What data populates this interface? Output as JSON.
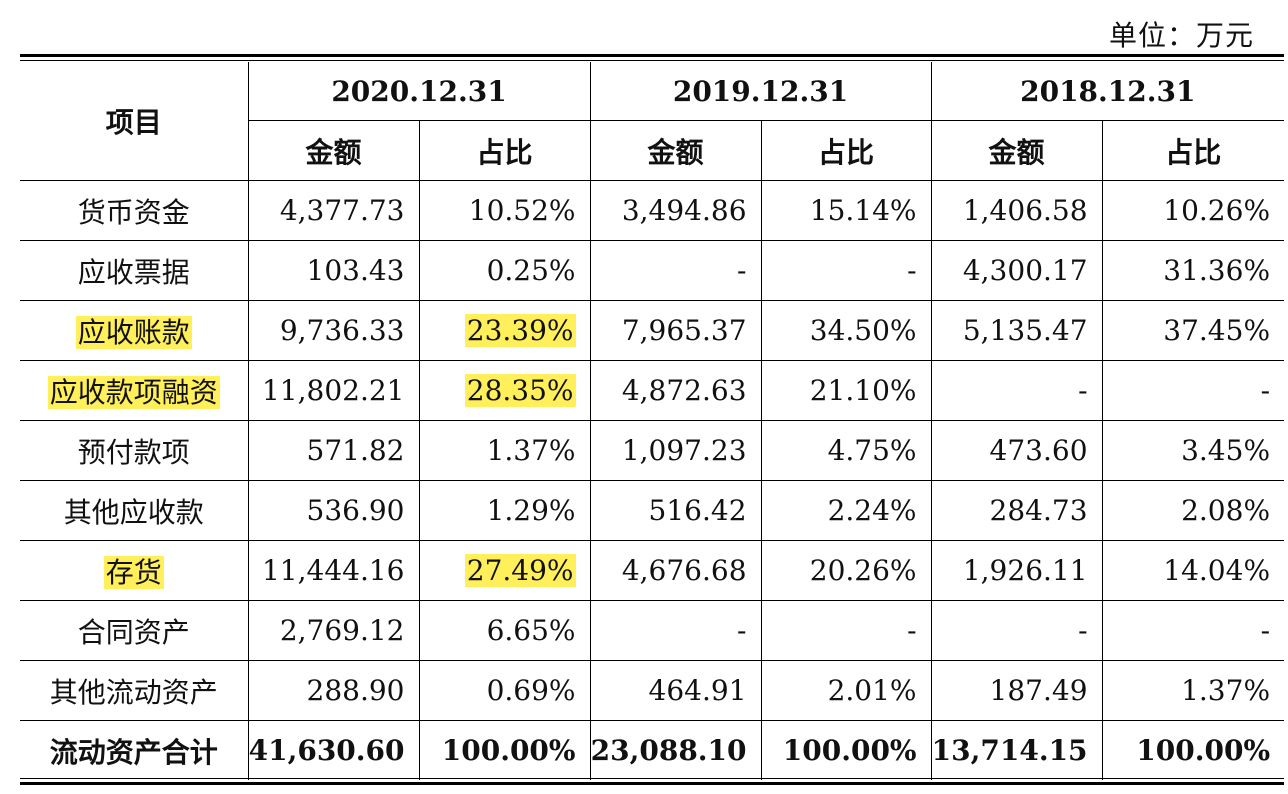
{
  "unit_label": "单位：万元",
  "header": {
    "item": "项目",
    "periods": [
      "2020.12.31",
      "2019.12.31",
      "2018.12.31"
    ],
    "amount": "金额",
    "ratio": "占比"
  },
  "highlight_color": "#ffef5a",
  "rows": [
    {
      "item": "货币资金",
      "hl": false,
      "cells": [
        {
          "v": "4,377.73"
        },
        {
          "v": "10.52%"
        },
        {
          "v": "3,494.86"
        },
        {
          "v": "15.14%"
        },
        {
          "v": "1,406.58"
        },
        {
          "v": "10.26%"
        }
      ]
    },
    {
      "item": "应收票据",
      "hl": false,
      "cells": [
        {
          "v": "103.43"
        },
        {
          "v": "0.25%"
        },
        {
          "v": "-"
        },
        {
          "v": "-"
        },
        {
          "v": "4,300.17"
        },
        {
          "v": "31.36%"
        }
      ]
    },
    {
      "item": "应收账款",
      "hl": true,
      "cells": [
        {
          "v": "9,736.33"
        },
        {
          "v": "23.39%",
          "hl": true
        },
        {
          "v": "7,965.37"
        },
        {
          "v": "34.50%"
        },
        {
          "v": "5,135.47"
        },
        {
          "v": "37.45%"
        }
      ]
    },
    {
      "item": "应收款项融资",
      "hl": true,
      "cells": [
        {
          "v": "11,802.21"
        },
        {
          "v": "28.35%",
          "hl": true
        },
        {
          "v": "4,872.63"
        },
        {
          "v": "21.10%"
        },
        {
          "v": "-"
        },
        {
          "v": "-"
        }
      ]
    },
    {
      "item": "预付款项",
      "hl": false,
      "cells": [
        {
          "v": "571.82"
        },
        {
          "v": "1.37%"
        },
        {
          "v": "1,097.23"
        },
        {
          "v": "4.75%"
        },
        {
          "v": "473.60"
        },
        {
          "v": "3.45%"
        }
      ]
    },
    {
      "item": "其他应收款",
      "hl": false,
      "cells": [
        {
          "v": "536.90"
        },
        {
          "v": "1.29%"
        },
        {
          "v": "516.42"
        },
        {
          "v": "2.24%"
        },
        {
          "v": "284.73"
        },
        {
          "v": "2.08%"
        }
      ]
    },
    {
      "item": "存货",
      "hl": true,
      "cells": [
        {
          "v": "11,444.16"
        },
        {
          "v": "27.49%",
          "hl": true
        },
        {
          "v": "4,676.68"
        },
        {
          "v": "20.26%"
        },
        {
          "v": "1,926.11"
        },
        {
          "v": "14.04%"
        }
      ]
    },
    {
      "item": "合同资产",
      "hl": false,
      "cells": [
        {
          "v": "2,769.12"
        },
        {
          "v": "6.65%"
        },
        {
          "v": "-"
        },
        {
          "v": "-"
        },
        {
          "v": "-"
        },
        {
          "v": "-"
        }
      ]
    },
    {
      "item": "其他流动资产",
      "hl": false,
      "cells": [
        {
          "v": "288.90"
        },
        {
          "v": "0.69%"
        },
        {
          "v": "464.91"
        },
        {
          "v": "2.01%"
        },
        {
          "v": "187.49"
        },
        {
          "v": "1.37%"
        }
      ]
    }
  ],
  "total": {
    "item": "流动资产合计",
    "cells": [
      "41,630.60",
      "100.00%",
      "23,088.10",
      "100.00%",
      "13,714.15",
      "100.00%"
    ]
  }
}
